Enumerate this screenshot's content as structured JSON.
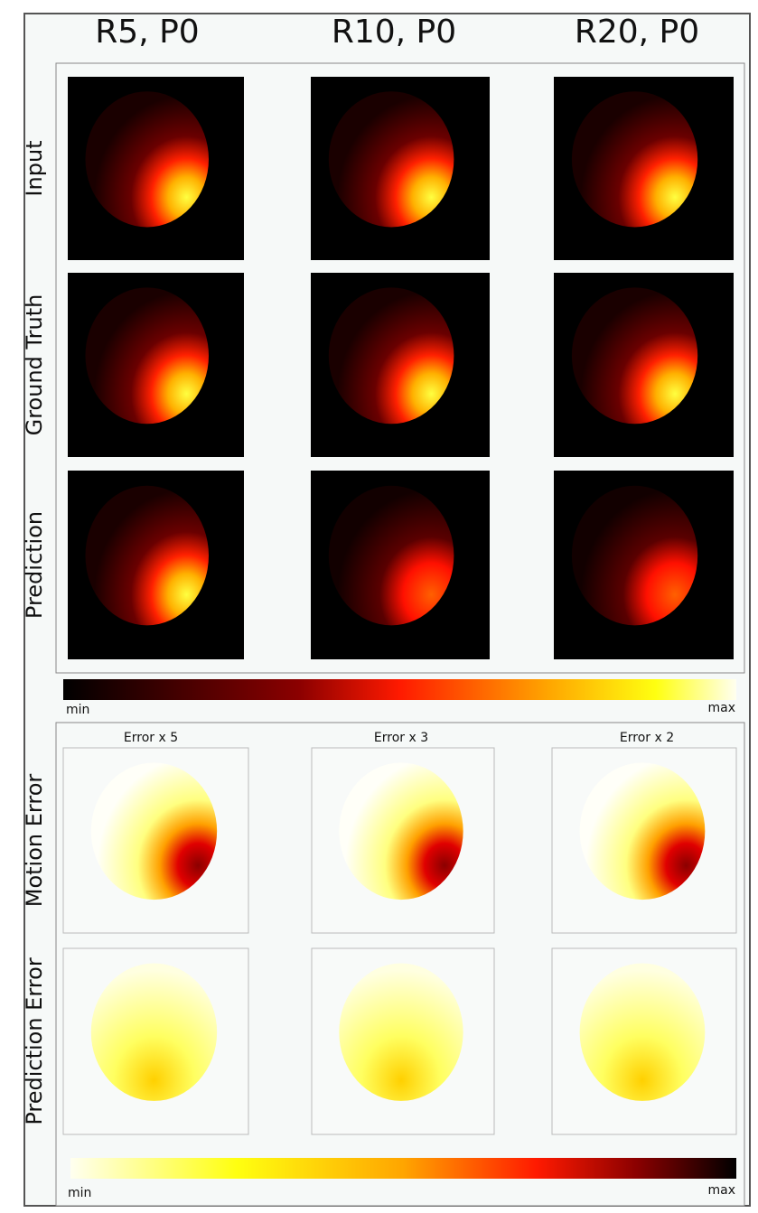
{
  "columns": [
    "R5, P0",
    "R10, P0",
    "R20, P0"
  ],
  "rows": [
    "Input",
    "Ground Truth",
    "Prediction"
  ],
  "colorbar": {
    "min": "min",
    "max": "max"
  },
  "error_scales": [
    "Error x 5",
    "Error x 3",
    "Error x 2"
  ],
  "error_rows": [
    "Motion Error",
    "Prediction Error"
  ],
  "error_colorbar": {
    "min": "min",
    "max": "max"
  }
}
